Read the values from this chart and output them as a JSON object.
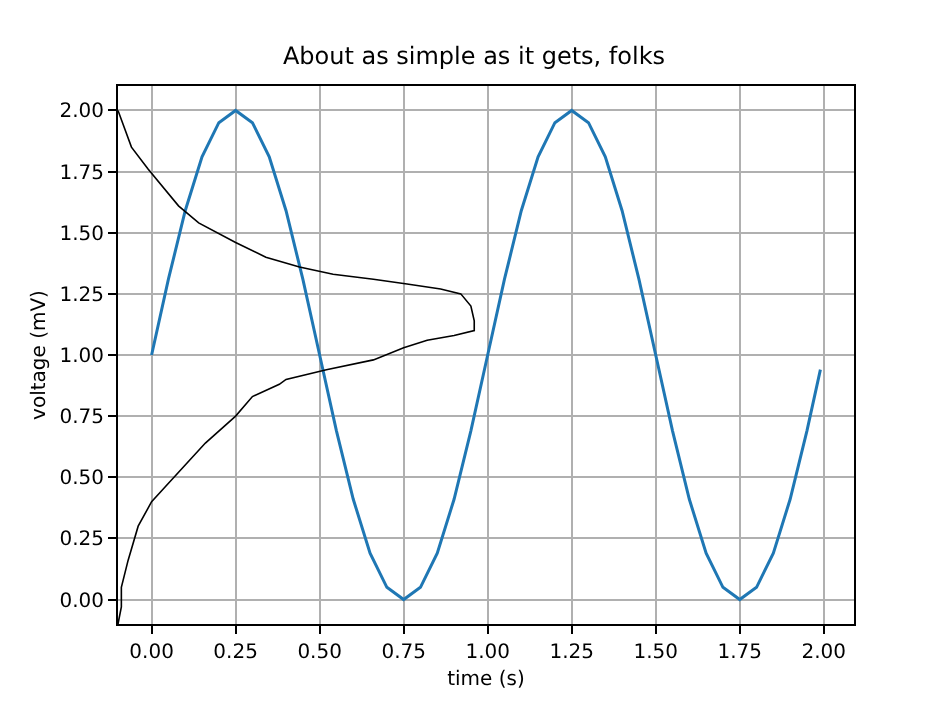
{
  "chart_data": {
    "type": "line",
    "title": "About as simple as it gets, folks",
    "xlabel": "time (s)",
    "ylabel": "voltage (mV)",
    "xlim": [
      -0.1,
      2.09
    ],
    "ylim": [
      -0.1,
      2.1
    ],
    "xticks": [
      {
        "value": 0,
        "label": "0.00"
      },
      {
        "value": 0.25,
        "label": "0.25"
      },
      {
        "value": 0.5,
        "label": "0.50"
      },
      {
        "value": 0.75,
        "label": "0.75"
      },
      {
        "value": 1,
        "label": "1.00"
      },
      {
        "value": 1.25,
        "label": "1.25"
      },
      {
        "value": 1.5,
        "label": "1.50"
      },
      {
        "value": 1.75,
        "label": "1.75"
      },
      {
        "value": 2,
        "label": "2.00"
      }
    ],
    "yticks": [
      {
        "value": 0,
        "label": "0.00"
      },
      {
        "value": 0.25,
        "label": "0.25"
      },
      {
        "value": 0.5,
        "label": "0.50"
      },
      {
        "value": 0.75,
        "label": "0.75"
      },
      {
        "value": 1,
        "label": "1.00"
      },
      {
        "value": 1.25,
        "label": "1.25"
      },
      {
        "value": 1.5,
        "label": "1.50"
      },
      {
        "value": 1.75,
        "label": "1.75"
      },
      {
        "value": 2,
        "label": "2.00"
      }
    ],
    "grid": true,
    "marker": "none",
    "line_style": "solid",
    "series": [
      {
        "color": "#1f77b4",
        "x": [
          0,
          0.05,
          0.1,
          0.15,
          0.2,
          0.25,
          0.3,
          0.35,
          0.4,
          0.45,
          0.5,
          0.55,
          0.6,
          0.65,
          0.7,
          0.75,
          0.8,
          0.85,
          0.9,
          0.95,
          1.0,
          1.05,
          1.1,
          1.15,
          1.2,
          1.25,
          1.3,
          1.35,
          1.4,
          1.45,
          1.5,
          1.55,
          1.6,
          1.65,
          1.7,
          1.75,
          1.8,
          1.85,
          1.9,
          1.95,
          1.99
        ],
        "values": [
          1.0,
          1.31,
          1.59,
          1.81,
          1.95,
          2.0,
          1.95,
          1.81,
          1.59,
          1.31,
          1.0,
          0.69,
          0.41,
          0.19,
          0.05,
          0.0,
          0.05,
          0.19,
          0.41,
          0.69,
          1.0,
          1.31,
          1.59,
          1.81,
          1.95,
          2.0,
          1.95,
          1.81,
          1.59,
          1.31,
          1.0,
          0.69,
          0.41,
          0.19,
          0.05,
          0.0,
          0.05,
          0.19,
          0.41,
          0.69,
          0.94
        ]
      },
      {
        "color": "#000000",
        "x": [
          -0.1,
          -0.06,
          -0.01,
          0.08,
          0.14,
          0.25,
          0.34,
          0.44,
          0.54,
          0.66,
          0.76,
          0.86,
          0.92,
          0.95,
          0.96,
          0.96,
          0.9,
          0.82,
          0.75,
          0.66,
          0.52,
          0.4,
          0.38,
          0.3,
          0.25,
          0.16,
          0.1,
          0.04,
          0.0,
          -0.04,
          -0.07,
          -0.09,
          -0.09,
          -0.1
        ],
        "values": [
          2.0,
          1.85,
          1.76,
          1.61,
          1.54,
          1.46,
          1.4,
          1.36,
          1.33,
          1.31,
          1.29,
          1.27,
          1.25,
          1.2,
          1.14,
          1.1,
          1.08,
          1.06,
          1.03,
          0.98,
          0.94,
          0.9,
          0.88,
          0.83,
          0.75,
          0.64,
          0.55,
          0.46,
          0.4,
          0.3,
          0.16,
          0.05,
          -0.03,
          -0.1
        ]
      }
    ]
  }
}
